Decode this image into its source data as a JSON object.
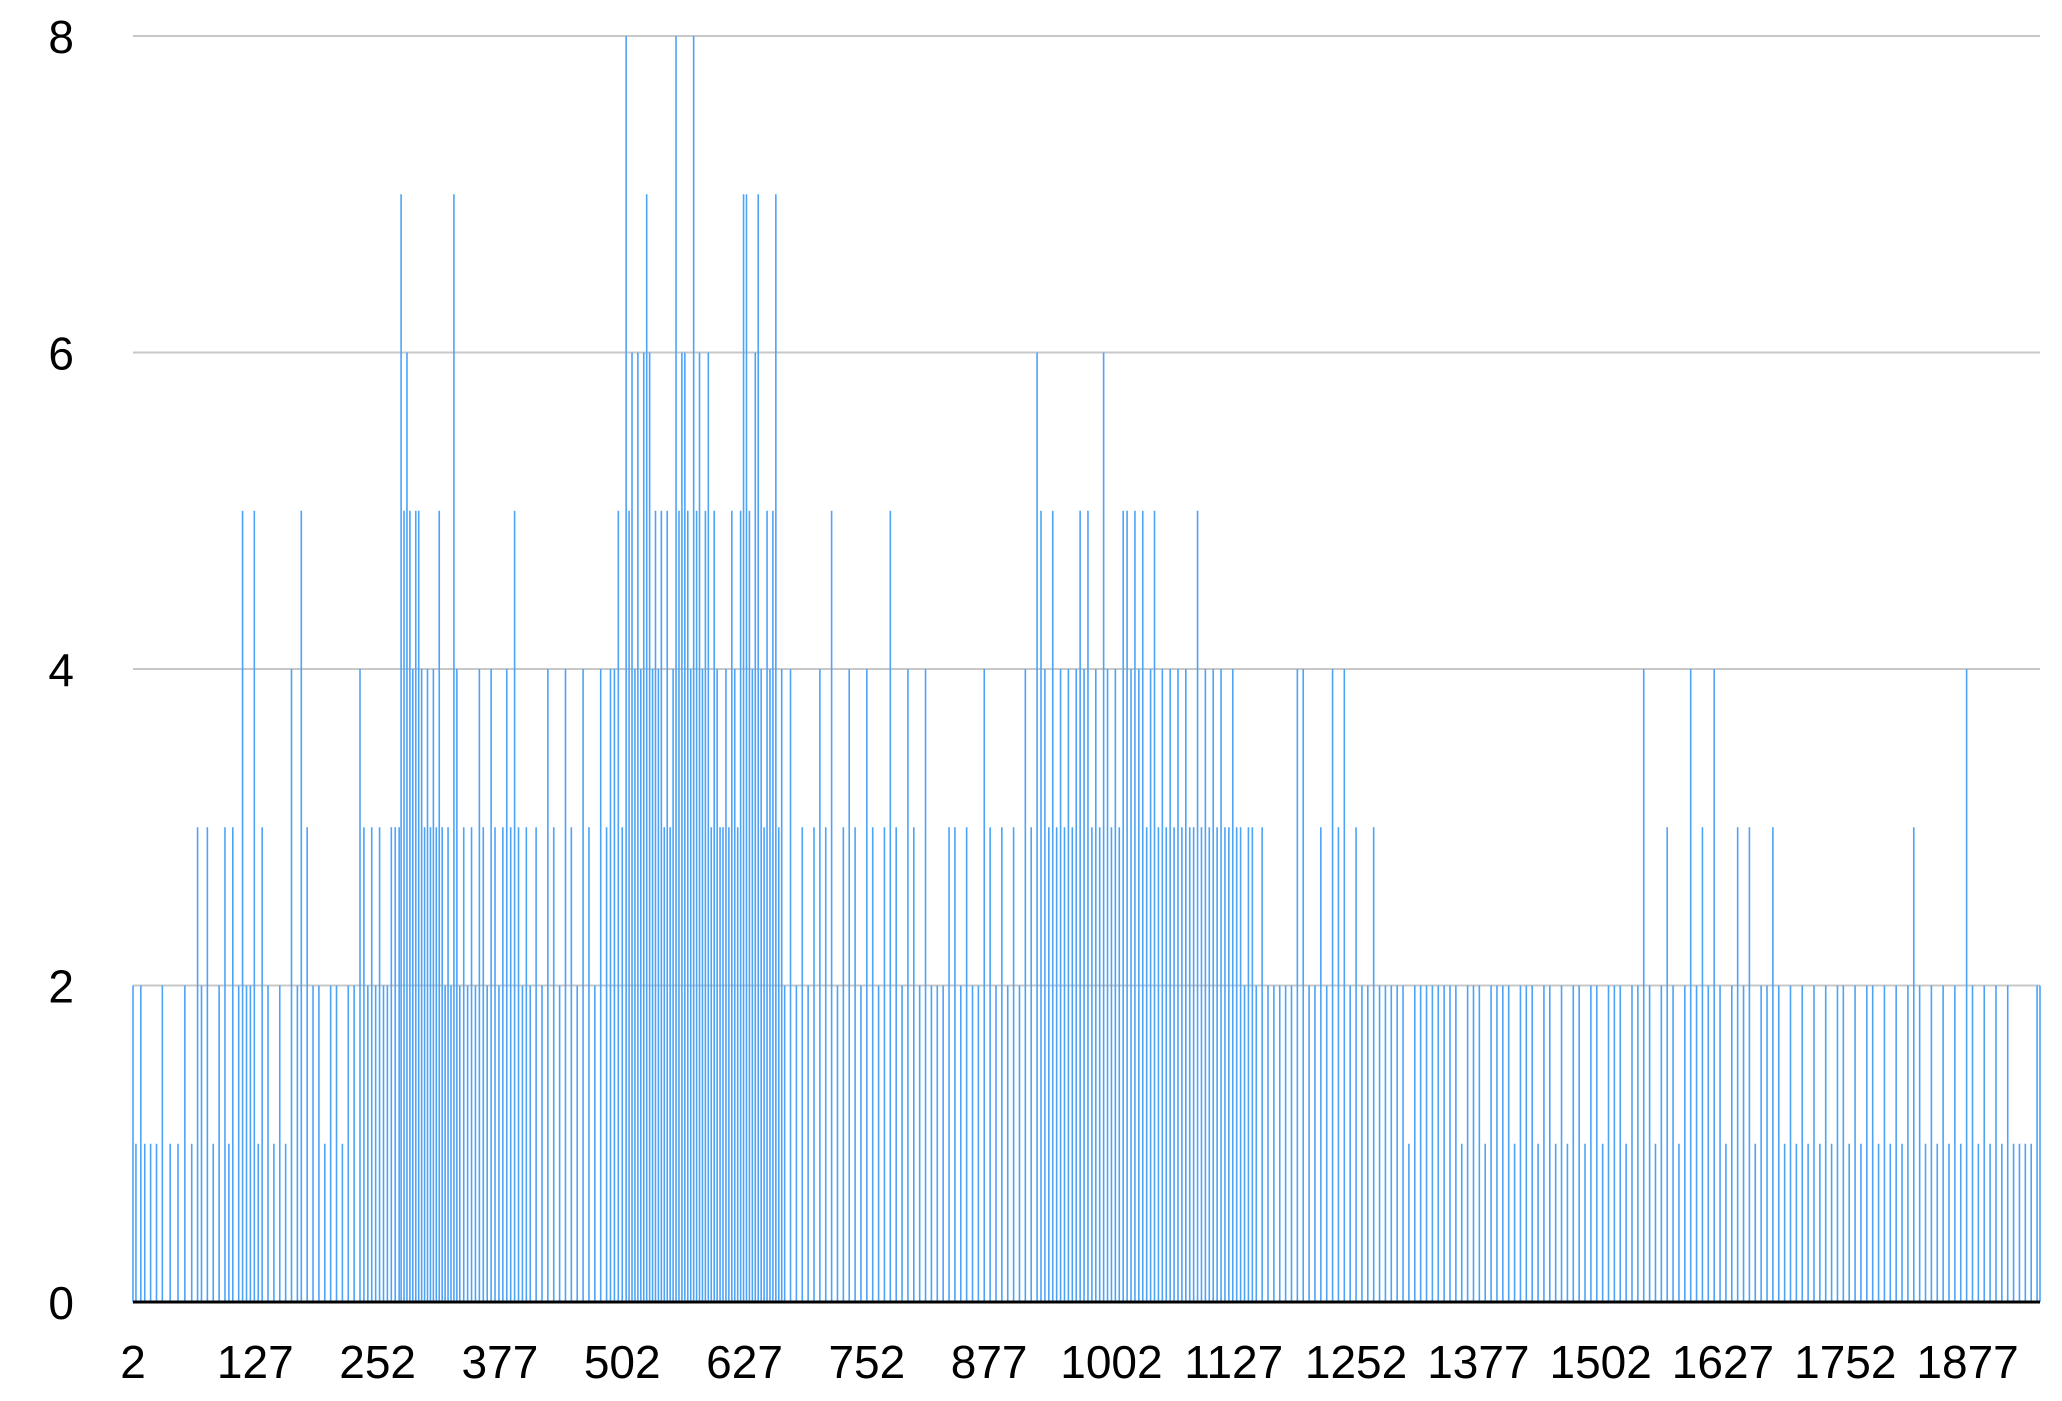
{
  "chart_data": {
    "type": "bar",
    "title": "",
    "xlabel": "",
    "ylabel": "",
    "x_range": [
      2,
      1951
    ],
    "x_ticks": [
      2,
      127,
      252,
      377,
      502,
      627,
      752,
      877,
      1002,
      1127,
      1252,
      1377,
      1502,
      1627,
      1752,
      1877
    ],
    "x_tick_labels": [
      "2",
      "127",
      "252",
      "377",
      "502",
      "627",
      "752",
      "877",
      "1002",
      "1127",
      "1252",
      "1377",
      "1502",
      "1627",
      "1752",
      "1877"
    ],
    "ylim": [
      0,
      8
    ],
    "y_ticks": [
      0,
      2,
      4,
      6,
      8
    ],
    "y_tick_labels": [
      "0",
      "2",
      "4",
      "6",
      "8"
    ],
    "grid": true,
    "legend": "none",
    "bar_color": "#4da3f7",
    "grid_color": "#c8c8c8",
    "axis_color": "#000000",
    "peaks": [
      [
        2,
        2
      ],
      [
        5,
        1
      ],
      [
        10,
        2
      ],
      [
        14,
        1
      ],
      [
        20,
        1
      ],
      [
        26,
        1
      ],
      [
        32,
        2
      ],
      [
        40,
        1
      ],
      [
        48,
        1
      ],
      [
        55,
        2
      ],
      [
        62,
        1
      ],
      [
        68,
        3
      ],
      [
        72,
        2
      ],
      [
        78,
        3
      ],
      [
        84,
        1
      ],
      [
        90,
        2
      ],
      [
        96,
        3
      ],
      [
        100,
        1
      ],
      [
        104,
        3
      ],
      [
        110,
        2
      ],
      [
        114,
        5
      ],
      [
        118,
        2
      ],
      [
        122,
        2
      ],
      [
        126,
        5
      ],
      [
        130,
        1
      ],
      [
        134,
        3
      ],
      [
        140,
        2
      ],
      [
        146,
        1
      ],
      [
        152,
        2
      ],
      [
        158,
        1
      ],
      [
        164,
        4
      ],
      [
        170,
        2
      ],
      [
        174,
        5
      ],
      [
        180,
        3
      ],
      [
        186,
        2
      ],
      [
        192,
        2
      ],
      [
        198,
        1
      ],
      [
        204,
        2
      ],
      [
        210,
        2
      ],
      [
        216,
        1
      ],
      [
        222,
        2
      ],
      [
        228,
        2
      ],
      [
        234,
        4
      ],
      [
        238,
        3
      ],
      [
        242,
        2
      ],
      [
        246,
        3
      ],
      [
        250,
        2
      ],
      [
        254,
        3
      ],
      [
        258,
        2
      ],
      [
        262,
        2
      ],
      [
        266,
        3
      ],
      [
        270,
        3
      ],
      [
        274,
        3
      ],
      [
        276,
        7
      ],
      [
        279,
        5
      ],
      [
        282,
        6
      ],
      [
        285,
        5
      ],
      [
        288,
        4
      ],
      [
        291,
        5
      ],
      [
        294,
        5
      ],
      [
        297,
        4
      ],
      [
        300,
        3
      ],
      [
        303,
        4
      ],
      [
        306,
        3
      ],
      [
        309,
        4
      ],
      [
        312,
        3
      ],
      [
        315,
        5
      ],
      [
        318,
        3
      ],
      [
        321,
        2
      ],
      [
        324,
        3
      ],
      [
        327,
        2
      ],
      [
        330,
        7
      ],
      [
        333,
        4
      ],
      [
        336,
        2
      ],
      [
        340,
        3
      ],
      [
        344,
        2
      ],
      [
        348,
        3
      ],
      [
        352,
        2
      ],
      [
        356,
        4
      ],
      [
        360,
        3
      ],
      [
        364,
        2
      ],
      [
        368,
        4
      ],
      [
        372,
        3
      ],
      [
        376,
        2
      ],
      [
        380,
        3
      ],
      [
        384,
        4
      ],
      [
        388,
        3
      ],
      [
        392,
        5
      ],
      [
        396,
        3
      ],
      [
        400,
        2
      ],
      [
        404,
        3
      ],
      [
        408,
        2
      ],
      [
        414,
        3
      ],
      [
        420,
        2
      ],
      [
        426,
        4
      ],
      [
        432,
        3
      ],
      [
        438,
        2
      ],
      [
        444,
        4
      ],
      [
        450,
        3
      ],
      [
        456,
        2
      ],
      [
        462,
        4
      ],
      [
        468,
        3
      ],
      [
        474,
        2
      ],
      [
        480,
        4
      ],
      [
        486,
        3
      ],
      [
        490,
        4
      ],
      [
        494,
        4
      ],
      [
        498,
        5
      ],
      [
        502,
        3
      ],
      [
        506,
        8
      ],
      [
        509,
        5
      ],
      [
        512,
        6
      ],
      [
        515,
        4
      ],
      [
        518,
        6
      ],
      [
        521,
        4
      ],
      [
        524,
        6
      ],
      [
        527,
        7
      ],
      [
        530,
        6
      ],
      [
        533,
        4
      ],
      [
        536,
        5
      ],
      [
        539,
        4
      ],
      [
        542,
        5
      ],
      [
        545,
        3
      ],
      [
        548,
        5
      ],
      [
        551,
        3
      ],
      [
        554,
        4
      ],
      [
        557,
        8
      ],
      [
        560,
        5
      ],
      [
        563,
        6
      ],
      [
        566,
        6
      ],
      [
        569,
        5
      ],
      [
        572,
        4
      ],
      [
        575,
        8
      ],
      [
        578,
        5
      ],
      [
        581,
        6
      ],
      [
        584,
        4
      ],
      [
        587,
        5
      ],
      [
        590,
        6
      ],
      [
        593,
        3
      ],
      [
        596,
        5
      ],
      [
        599,
        4
      ],
      [
        602,
        3
      ],
      [
        605,
        3
      ],
      [
        608,
        4
      ],
      [
        611,
        3
      ],
      [
        614,
        5
      ],
      [
        617,
        4
      ],
      [
        620,
        3
      ],
      [
        623,
        5
      ],
      [
        626,
        7
      ],
      [
        629,
        7
      ],
      [
        632,
        5
      ],
      [
        635,
        4
      ],
      [
        638,
        6
      ],
      [
        641,
        7
      ],
      [
        644,
        4
      ],
      [
        647,
        3
      ],
      [
        650,
        5
      ],
      [
        653,
        4
      ],
      [
        656,
        5
      ],
      [
        659,
        7
      ],
      [
        662,
        3
      ],
      [
        665,
        4
      ],
      [
        668,
        2
      ],
      [
        674,
        4
      ],
      [
        680,
        2
      ],
      [
        686,
        3
      ],
      [
        692,
        2
      ],
      [
        698,
        3
      ],
      [
        704,
        4
      ],
      [
        710,
        3
      ],
      [
        716,
        5
      ],
      [
        722,
        2
      ],
      [
        728,
        3
      ],
      [
        734,
        4
      ],
      [
        740,
        3
      ],
      [
        746,
        2
      ],
      [
        752,
        4
      ],
      [
        758,
        3
      ],
      [
        764,
        2
      ],
      [
        770,
        3
      ],
      [
        776,
        5
      ],
      [
        782,
        3
      ],
      [
        788,
        2
      ],
      [
        794,
        4
      ],
      [
        800,
        3
      ],
      [
        806,
        2
      ],
      [
        812,
        4
      ],
      [
        818,
        2
      ],
      [
        824,
        2
      ],
      [
        830,
        2
      ],
      [
        836,
        3
      ],
      [
        842,
        3
      ],
      [
        848,
        2
      ],
      [
        854,
        3
      ],
      [
        860,
        2
      ],
      [
        866,
        2
      ],
      [
        872,
        4
      ],
      [
        878,
        3
      ],
      [
        884,
        2
      ],
      [
        890,
        3
      ],
      [
        896,
        2
      ],
      [
        902,
        3
      ],
      [
        908,
        2
      ],
      [
        914,
        4
      ],
      [
        920,
        3
      ],
      [
        926,
        6
      ],
      [
        930,
        5
      ],
      [
        934,
        4
      ],
      [
        938,
        3
      ],
      [
        942,
        5
      ],
      [
        946,
        3
      ],
      [
        950,
        4
      ],
      [
        954,
        3
      ],
      [
        958,
        4
      ],
      [
        962,
        3
      ],
      [
        966,
        4
      ],
      [
        970,
        5
      ],
      [
        974,
        4
      ],
      [
        978,
        5
      ],
      [
        982,
        3
      ],
      [
        986,
        4
      ],
      [
        990,
        3
      ],
      [
        994,
        6
      ],
      [
        998,
        4
      ],
      [
        1002,
        3
      ],
      [
        1006,
        4
      ],
      [
        1010,
        3
      ],
      [
        1014,
        5
      ],
      [
        1018,
        5
      ],
      [
        1022,
        4
      ],
      [
        1026,
        5
      ],
      [
        1030,
        4
      ],
      [
        1034,
        5
      ],
      [
        1038,
        3
      ],
      [
        1042,
        4
      ],
      [
        1046,
        5
      ],
      [
        1050,
        3
      ],
      [
        1054,
        4
      ],
      [
        1058,
        3
      ],
      [
        1062,
        4
      ],
      [
        1066,
        3
      ],
      [
        1070,
        4
      ],
      [
        1074,
        3
      ],
      [
        1078,
        4
      ],
      [
        1082,
        3
      ],
      [
        1086,
        3
      ],
      [
        1090,
        5
      ],
      [
        1094,
        3
      ],
      [
        1098,
        4
      ],
      [
        1102,
        3
      ],
      [
        1106,
        4
      ],
      [
        1110,
        3
      ],
      [
        1114,
        4
      ],
      [
        1118,
        3
      ],
      [
        1122,
        3
      ],
      [
        1126,
        4
      ],
      [
        1130,
        3
      ],
      [
        1134,
        3
      ],
      [
        1138,
        2
      ],
      [
        1142,
        3
      ],
      [
        1146,
        3
      ],
      [
        1150,
        2
      ],
      [
        1156,
        3
      ],
      [
        1162,
        2
      ],
      [
        1168,
        2
      ],
      [
        1174,
        2
      ],
      [
        1180,
        2
      ],
      [
        1186,
        2
      ],
      [
        1192,
        4
      ],
      [
        1198,
        4
      ],
      [
        1204,
        2
      ],
      [
        1210,
        2
      ],
      [
        1216,
        3
      ],
      [
        1222,
        2
      ],
      [
        1228,
        4
      ],
      [
        1234,
        3
      ],
      [
        1240,
        4
      ],
      [
        1246,
        2
      ],
      [
        1252,
        3
      ],
      [
        1258,
        2
      ],
      [
        1264,
        2
      ],
      [
        1270,
        3
      ],
      [
        1276,
        2
      ],
      [
        1282,
        2
      ],
      [
        1288,
        2
      ],
      [
        1294,
        2
      ],
      [
        1300,
        2
      ],
      [
        1306,
        1
      ],
      [
        1312,
        2
      ],
      [
        1318,
        2
      ],
      [
        1324,
        2
      ],
      [
        1330,
        2
      ],
      [
        1336,
        2
      ],
      [
        1342,
        2
      ],
      [
        1348,
        2
      ],
      [
        1354,
        2
      ],
      [
        1360,
        1
      ],
      [
        1366,
        2
      ],
      [
        1372,
        2
      ],
      [
        1378,
        2
      ],
      [
        1384,
        1
      ],
      [
        1390,
        2
      ],
      [
        1396,
        2
      ],
      [
        1402,
        2
      ],
      [
        1408,
        2
      ],
      [
        1414,
        1
      ],
      [
        1420,
        2
      ],
      [
        1426,
        2
      ],
      [
        1432,
        2
      ],
      [
        1438,
        1
      ],
      [
        1444,
        2
      ],
      [
        1450,
        2
      ],
      [
        1456,
        1
      ],
      [
        1462,
        2
      ],
      [
        1468,
        1
      ],
      [
        1474,
        2
      ],
      [
        1480,
        2
      ],
      [
        1486,
        1
      ],
      [
        1492,
        2
      ],
      [
        1498,
        2
      ],
      [
        1504,
        1
      ],
      [
        1510,
        2
      ],
      [
        1516,
        2
      ],
      [
        1522,
        2
      ],
      [
        1528,
        1
      ],
      [
        1534,
        2
      ],
      [
        1540,
        2
      ],
      [
        1546,
        4
      ],
      [
        1552,
        2
      ],
      [
        1558,
        1
      ],
      [
        1564,
        2
      ],
      [
        1570,
        3
      ],
      [
        1576,
        2
      ],
      [
        1582,
        1
      ],
      [
        1588,
        2
      ],
      [
        1594,
        4
      ],
      [
        1600,
        2
      ],
      [
        1606,
        3
      ],
      [
        1612,
        2
      ],
      [
        1618,
        4
      ],
      [
        1624,
        2
      ],
      [
        1630,
        1
      ],
      [
        1636,
        2
      ],
      [
        1642,
        3
      ],
      [
        1648,
        2
      ],
      [
        1654,
        3
      ],
      [
        1660,
        1
      ],
      [
        1666,
        2
      ],
      [
        1672,
        2
      ],
      [
        1678,
        3
      ],
      [
        1684,
        2
      ],
      [
        1690,
        1
      ],
      [
        1696,
        2
      ],
      [
        1702,
        1
      ],
      [
        1708,
        2
      ],
      [
        1714,
        1
      ],
      [
        1720,
        2
      ],
      [
        1726,
        1
      ],
      [
        1732,
        2
      ],
      [
        1738,
        1
      ],
      [
        1744,
        2
      ],
      [
        1750,
        2
      ],
      [
        1756,
        1
      ],
      [
        1762,
        2
      ],
      [
        1768,
        1
      ],
      [
        1774,
        2
      ],
      [
        1780,
        2
      ],
      [
        1786,
        1
      ],
      [
        1792,
        2
      ],
      [
        1798,
        1
      ],
      [
        1804,
        2
      ],
      [
        1810,
        1
      ],
      [
        1816,
        2
      ],
      [
        1822,
        3
      ],
      [
        1828,
        2
      ],
      [
        1834,
        1
      ],
      [
        1840,
        2
      ],
      [
        1846,
        1
      ],
      [
        1852,
        2
      ],
      [
        1858,
        1
      ],
      [
        1864,
        2
      ],
      [
        1870,
        1
      ],
      [
        1876,
        4
      ],
      [
        1882,
        2
      ],
      [
        1888,
        1
      ],
      [
        1894,
        2
      ],
      [
        1900,
        1
      ],
      [
        1906,
        2
      ],
      [
        1912,
        1
      ],
      [
        1918,
        2
      ],
      [
        1924,
        1
      ],
      [
        1930,
        1
      ],
      [
        1936,
        1
      ],
      [
        1942,
        1
      ],
      [
        1948,
        2
      ],
      [
        1951,
        2
      ]
    ]
  }
}
